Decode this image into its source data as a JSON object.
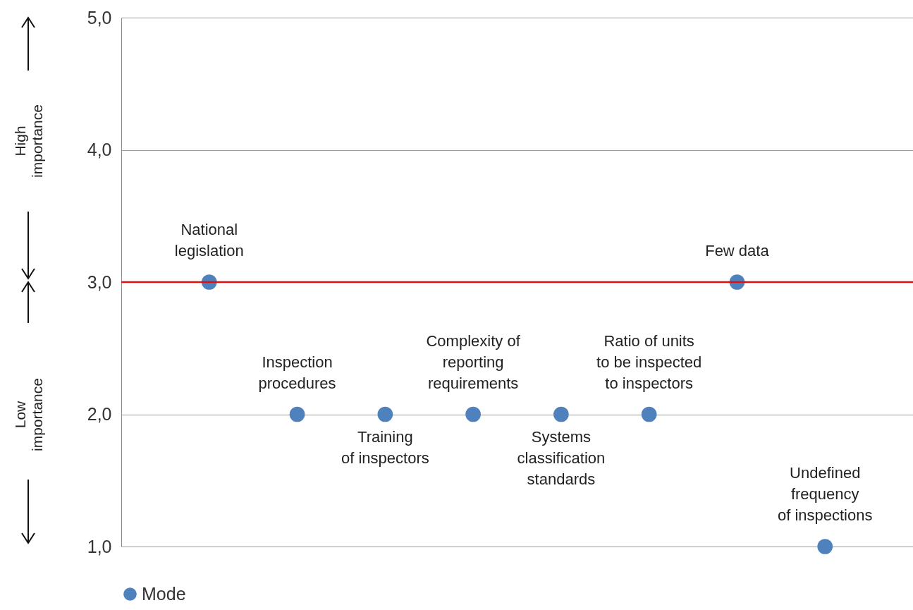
{
  "chart_data": {
    "type": "scatter",
    "categories": [
      null,
      null,
      null,
      null,
      null,
      null,
      null,
      null
    ],
    "series": [
      {
        "name": "Mode",
        "color": "#4f81bd",
        "values": [
          3,
          2,
          2,
          2,
          2,
          2,
          3,
          1
        ]
      }
    ],
    "ylim": [
      1,
      5
    ],
    "yticks": [
      {
        "value": 1,
        "label": "1,0"
      },
      {
        "value": 2,
        "label": "2,0"
      },
      {
        "value": 3,
        "label": "3,0"
      },
      {
        "value": 4,
        "label": "4,0"
      },
      {
        "value": 5,
        "label": "5,0"
      }
    ],
    "grid": "y",
    "legend": "bottom",
    "marker": "circle",
    "tick_labels": "y",
    "ref_lines": [
      {
        "axis": "y",
        "value": 3,
        "color": "#e01010"
      }
    ],
    "annotations": [
      {
        "text": "National\nlegislation",
        "y": 3
      },
      {
        "text": "Inspection\nprocedures",
        "y": 2
      },
      {
        "text": "Training\nof inspectors",
        "y": 2
      },
      {
        "text": "Complexity of\nreporting\nrequirements",
        "y": 2
      },
      {
        "text": "Systems\nclassification\nstandards",
        "y": 2
      },
      {
        "text": "Ratio of units\nto be inspected\nto inspectors",
        "y": 2
      },
      {
        "text": "Few data",
        "y": 3
      },
      {
        "text": "Undefined\nfrequency\nof inspections",
        "y": 1
      },
      "High\nimportance",
      "Low\nimportance"
    ]
  }
}
